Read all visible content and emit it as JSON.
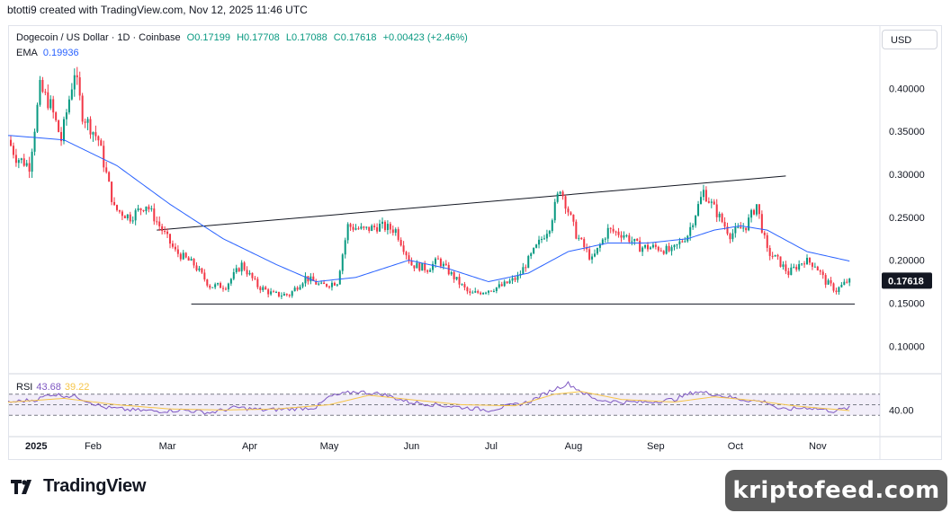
{
  "header": {
    "text": "btotti9 created with TradingView.com, Nov 12, 2025 11:46 UTC"
  },
  "legend": {
    "symbol": "Dogecoin / US Dollar",
    "interval": "1D",
    "exchange": "Coinbase",
    "open": "O0.17199",
    "high": "H0.17708",
    "low": "L0.17088",
    "close": "C0.17618",
    "change": "+0.00423 (+2.46%)",
    "ema_label": "EMA",
    "ema_value": "0.19936"
  },
  "currency": "USD",
  "rsi": {
    "label": "RSI",
    "value": "43.68",
    "ma_value": "39.22",
    "level_label": "40.00"
  },
  "brand": {
    "logo_text": "TradingView",
    "watermark": "kriptofeed.com"
  },
  "colors": {
    "up": "#089981",
    "down": "#f23645",
    "ema": "#2962ff",
    "rsi": "#7e57c2",
    "rsi_ma": "#f7c548"
  },
  "chart_data": {
    "type": "candlestick",
    "y_ticks": [
      "0.40000",
      "0.35000",
      "0.30000",
      "0.25000",
      "0.20000",
      "0.15000",
      "0.10000"
    ],
    "ylim": [
      0.07,
      0.44
    ],
    "x_ticks": [
      {
        "label": "2025",
        "day": 0
      },
      {
        "label": "Feb",
        "day": 31
      },
      {
        "label": "Mar",
        "day": 59
      },
      {
        "label": "Apr",
        "day": 90
      },
      {
        "label": "May",
        "day": 120
      },
      {
        "label": "Jun",
        "day": 151
      },
      {
        "label": "Jul",
        "day": 181
      },
      {
        "label": "Aug",
        "day": 212
      },
      {
        "label": "Sep",
        "day": 243
      },
      {
        "label": "Oct",
        "day": 273
      },
      {
        "label": "Nov",
        "day": 304
      }
    ],
    "last_price": "0.17618",
    "trendlines": [
      {
        "name": "resistance",
        "from": {
          "day": 55,
          "price": 0.235
        },
        "to": {
          "day": 292,
          "price": 0.298
        }
      },
      {
        "name": "support",
        "from": {
          "day": 68,
          "price": 0.149
        },
        "to": {
          "day": 318,
          "price": 0.149
        }
      }
    ],
    "ohlc_anchors": [
      [
        0,
        0.34
      ],
      [
        3,
        0.32
      ],
      [
        8,
        0.31
      ],
      [
        12,
        0.4
      ],
      [
        16,
        0.38
      ],
      [
        20,
        0.34
      ],
      [
        25,
        0.42
      ],
      [
        28,
        0.37
      ],
      [
        34,
        0.34
      ],
      [
        40,
        0.26
      ],
      [
        46,
        0.25
      ],
      [
        52,
        0.265
      ],
      [
        58,
        0.235
      ],
      [
        63,
        0.21
      ],
      [
        70,
        0.195
      ],
      [
        76,
        0.17
      ],
      [
        82,
        0.17
      ],
      [
        88,
        0.195
      ],
      [
        94,
        0.17
      ],
      [
        100,
        0.16
      ],
      [
        106,
        0.16
      ],
      [
        112,
        0.18
      ],
      [
        118,
        0.17
      ],
      [
        124,
        0.175
      ],
      [
        128,
        0.24
      ],
      [
        134,
        0.235
      ],
      [
        140,
        0.24
      ],
      [
        146,
        0.235
      ],
      [
        152,
        0.195
      ],
      [
        158,
        0.19
      ],
      [
        162,
        0.2
      ],
      [
        168,
        0.18
      ],
      [
        174,
        0.16
      ],
      [
        180,
        0.165
      ],
      [
        186,
        0.17
      ],
      [
        192,
        0.18
      ],
      [
        198,
        0.21
      ],
      [
        204,
        0.24
      ],
      [
        208,
        0.285
      ],
      [
        214,
        0.23
      ],
      [
        220,
        0.2
      ],
      [
        226,
        0.235
      ],
      [
        232,
        0.23
      ],
      [
        238,
        0.215
      ],
      [
        244,
        0.215
      ],
      [
        250,
        0.21
      ],
      [
        256,
        0.23
      ],
      [
        262,
        0.28
      ],
      [
        266,
        0.26
      ],
      [
        272,
        0.23
      ],
      [
        278,
        0.24
      ],
      [
        282,
        0.265
      ],
      [
        286,
        0.21
      ],
      [
        290,
        0.2
      ],
      [
        294,
        0.185
      ],
      [
        300,
        0.2
      ],
      [
        304,
        0.195
      ],
      [
        308,
        0.175
      ],
      [
        312,
        0.165
      ],
      [
        316,
        0.175
      ]
    ],
    "ema_anchors": [
      [
        0,
        0.345
      ],
      [
        20,
        0.34
      ],
      [
        40,
        0.31
      ],
      [
        60,
        0.265
      ],
      [
        80,
        0.225
      ],
      [
        100,
        0.195
      ],
      [
        115,
        0.175
      ],
      [
        130,
        0.18
      ],
      [
        150,
        0.2
      ],
      [
        165,
        0.19
      ],
      [
        180,
        0.175
      ],
      [
        195,
        0.185
      ],
      [
        210,
        0.21
      ],
      [
        225,
        0.22
      ],
      [
        240,
        0.22
      ],
      [
        255,
        0.225
      ],
      [
        265,
        0.235
      ],
      [
        275,
        0.24
      ],
      [
        285,
        0.235
      ],
      [
        300,
        0.21
      ],
      [
        316,
        0.199
      ]
    ],
    "rsi_anchors": [
      [
        0,
        55
      ],
      [
        10,
        60
      ],
      [
        15,
        70
      ],
      [
        25,
        65
      ],
      [
        35,
        45
      ],
      [
        45,
        40
      ],
      [
        55,
        38
      ],
      [
        65,
        40
      ],
      [
        75,
        35
      ],
      [
        85,
        45
      ],
      [
        95,
        40
      ],
      [
        105,
        42
      ],
      [
        115,
        45
      ],
      [
        120,
        65
      ],
      [
        130,
        75
      ],
      [
        140,
        70
      ],
      [
        150,
        55
      ],
      [
        160,
        50
      ],
      [
        170,
        45
      ],
      [
        180,
        40
      ],
      [
        195,
        55
      ],
      [
        205,
        80
      ],
      [
        210,
        90
      ],
      [
        220,
        60
      ],
      [
        230,
        55
      ],
      [
        240,
        55
      ],
      [
        250,
        60
      ],
      [
        258,
        75
      ],
      [
        265,
        70
      ],
      [
        275,
        60
      ],
      [
        285,
        55
      ],
      [
        290,
        40
      ],
      [
        300,
        45
      ],
      [
        310,
        38
      ],
      [
        316,
        44
      ]
    ],
    "rsi_ma_anchors": [
      [
        0,
        55
      ],
      [
        20,
        62
      ],
      [
        40,
        50
      ],
      [
        60,
        42
      ],
      [
        80,
        40
      ],
      [
        100,
        42
      ],
      [
        120,
        50
      ],
      [
        135,
        68
      ],
      [
        150,
        60
      ],
      [
        170,
        50
      ],
      [
        190,
        48
      ],
      [
        205,
        70
      ],
      [
        215,
        75
      ],
      [
        230,
        60
      ],
      [
        250,
        55
      ],
      [
        265,
        65
      ],
      [
        280,
        58
      ],
      [
        295,
        48
      ],
      [
        316,
        39
      ]
    ]
  }
}
